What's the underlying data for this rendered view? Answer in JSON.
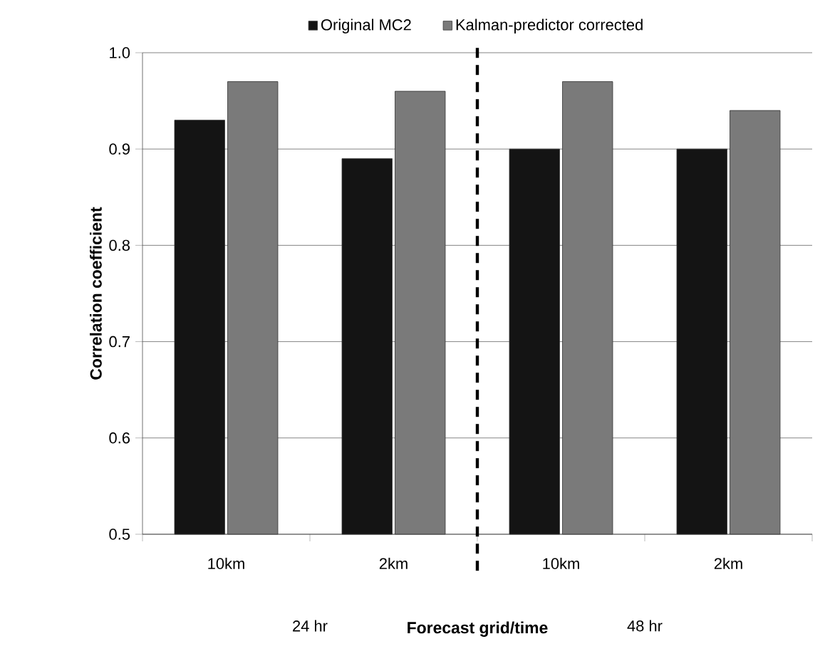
{
  "chart_data": {
    "type": "bar",
    "xlabel": "Forecast grid/time",
    "ylabel": "Correlation coefficient",
    "categories": [
      "10km",
      "2km",
      "10km",
      "2km"
    ],
    "series": [
      {
        "name": "Original MC2",
        "color": "#141414",
        "values": [
          0.93,
          0.89,
          0.9,
          0.9
        ]
      },
      {
        "name": "Kalman-predictor corrected",
        "color": "#7a7a7a",
        "values": [
          0.97,
          0.96,
          0.97,
          0.94
        ]
      }
    ],
    "ylim": [
      0.5,
      1.0
    ],
    "yticks": [
      0.5,
      0.6,
      0.7,
      0.8,
      0.9,
      {
        "value": 1.0,
        "label": "1.0"
      }
    ],
    "grid": "y",
    "legend": "top",
    "annotations": [
      "24 hr",
      "48 hr"
    ]
  }
}
